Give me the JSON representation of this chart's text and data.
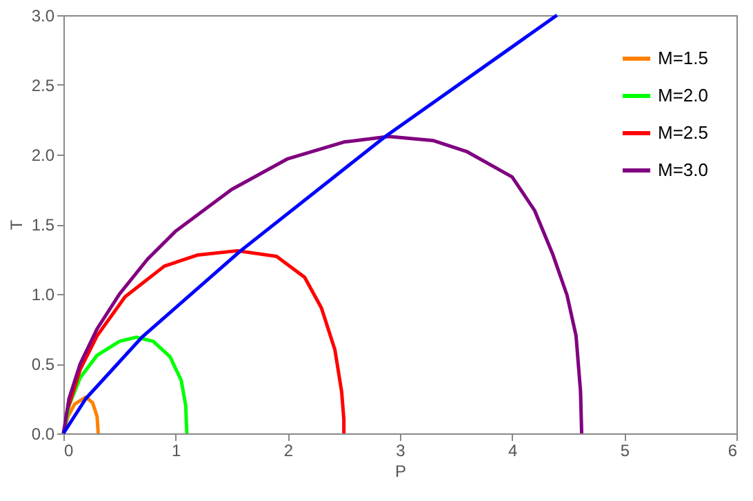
{
  "chart_data": {
    "type": "line",
    "xlabel": "P",
    "ylabel": "T",
    "xlim": [
      0,
      6
    ],
    "ylim": [
      0,
      3
    ],
    "xticks": [
      {
        "value": 0,
        "label": "0"
      },
      {
        "value": 1,
        "label": "1"
      },
      {
        "value": 2,
        "label": "2"
      },
      {
        "value": 3,
        "label": "3"
      },
      {
        "value": 4,
        "label": "4"
      },
      {
        "value": 5,
        "label": "5"
      },
      {
        "value": 6,
        "label": "6"
      }
    ],
    "yticks": [
      {
        "value": 0,
        "label": "0.0"
      },
      {
        "value": 0.5,
        "label": "0.5"
      },
      {
        "value": 1,
        "label": "1.0"
      },
      {
        "value": 1.5,
        "label": "1.5"
      },
      {
        "value": 2,
        "label": "2.0"
      },
      {
        "value": 2.5,
        "label": "2.5"
      },
      {
        "value": 3,
        "label": "3.0"
      }
    ],
    "legend": "top right",
    "grid": false,
    "marker": "none",
    "line_style": "solid",
    "series": [
      {
        "name": "M=1.5",
        "color": "#ff8000",
        "x": [
          0,
          0.04,
          0.1,
          0.2,
          0.26,
          0.3,
          0.31
        ],
        "values": [
          0,
          0.12,
          0.21,
          0.26,
          0.22,
          0.12,
          0
        ]
      },
      {
        "name": "M=2.0",
        "color": "#00ff00",
        "x": [
          0,
          0.05,
          0.15,
          0.3,
          0.5,
          0.65,
          0.8,
          0.95,
          1.05,
          1.09,
          1.1
        ],
        "values": [
          0,
          0.2,
          0.4,
          0.56,
          0.66,
          0.69,
          0.66,
          0.55,
          0.38,
          0.2,
          0
        ]
      },
      {
        "name": "M=2.5",
        "color": "#ff0000",
        "x": [
          0.04,
          0.15,
          0.3,
          0.55,
          0.9,
          1.2,
          1.55,
          1.9,
          2.15,
          2.3,
          2.42,
          2.48,
          2.5,
          2.5
        ],
        "values": [
          0.18,
          0.46,
          0.7,
          0.98,
          1.2,
          1.28,
          1.31,
          1.27,
          1.12,
          0.9,
          0.6,
          0.3,
          0.1,
          0
        ]
      },
      {
        "name": "M=3.0",
        "color": "#800080",
        "x": [
          0,
          0.05,
          0.15,
          0.3,
          0.5,
          0.75,
          1.0,
          1.5,
          2.0,
          2.5,
          2.9,
          3.3,
          3.6,
          4.0,
          4.2,
          4.36,
          4.49,
          4.57,
          4.61,
          4.62
        ],
        "values": [
          0,
          0.25,
          0.5,
          0.75,
          1.0,
          1.25,
          1.45,
          1.75,
          1.97,
          2.09,
          2.13,
          2.1,
          2.02,
          1.84,
          1.6,
          1.29,
          0.99,
          0.7,
          0.3,
          0
        ]
      },
      {
        "color": "#0000ff",
        "x": [
          0,
          0.2,
          0.7,
          1.58,
          2.87,
          4.4
        ],
        "values": [
          0,
          0.25,
          0.69,
          1.31,
          2.13,
          3.0
        ]
      }
    ]
  }
}
